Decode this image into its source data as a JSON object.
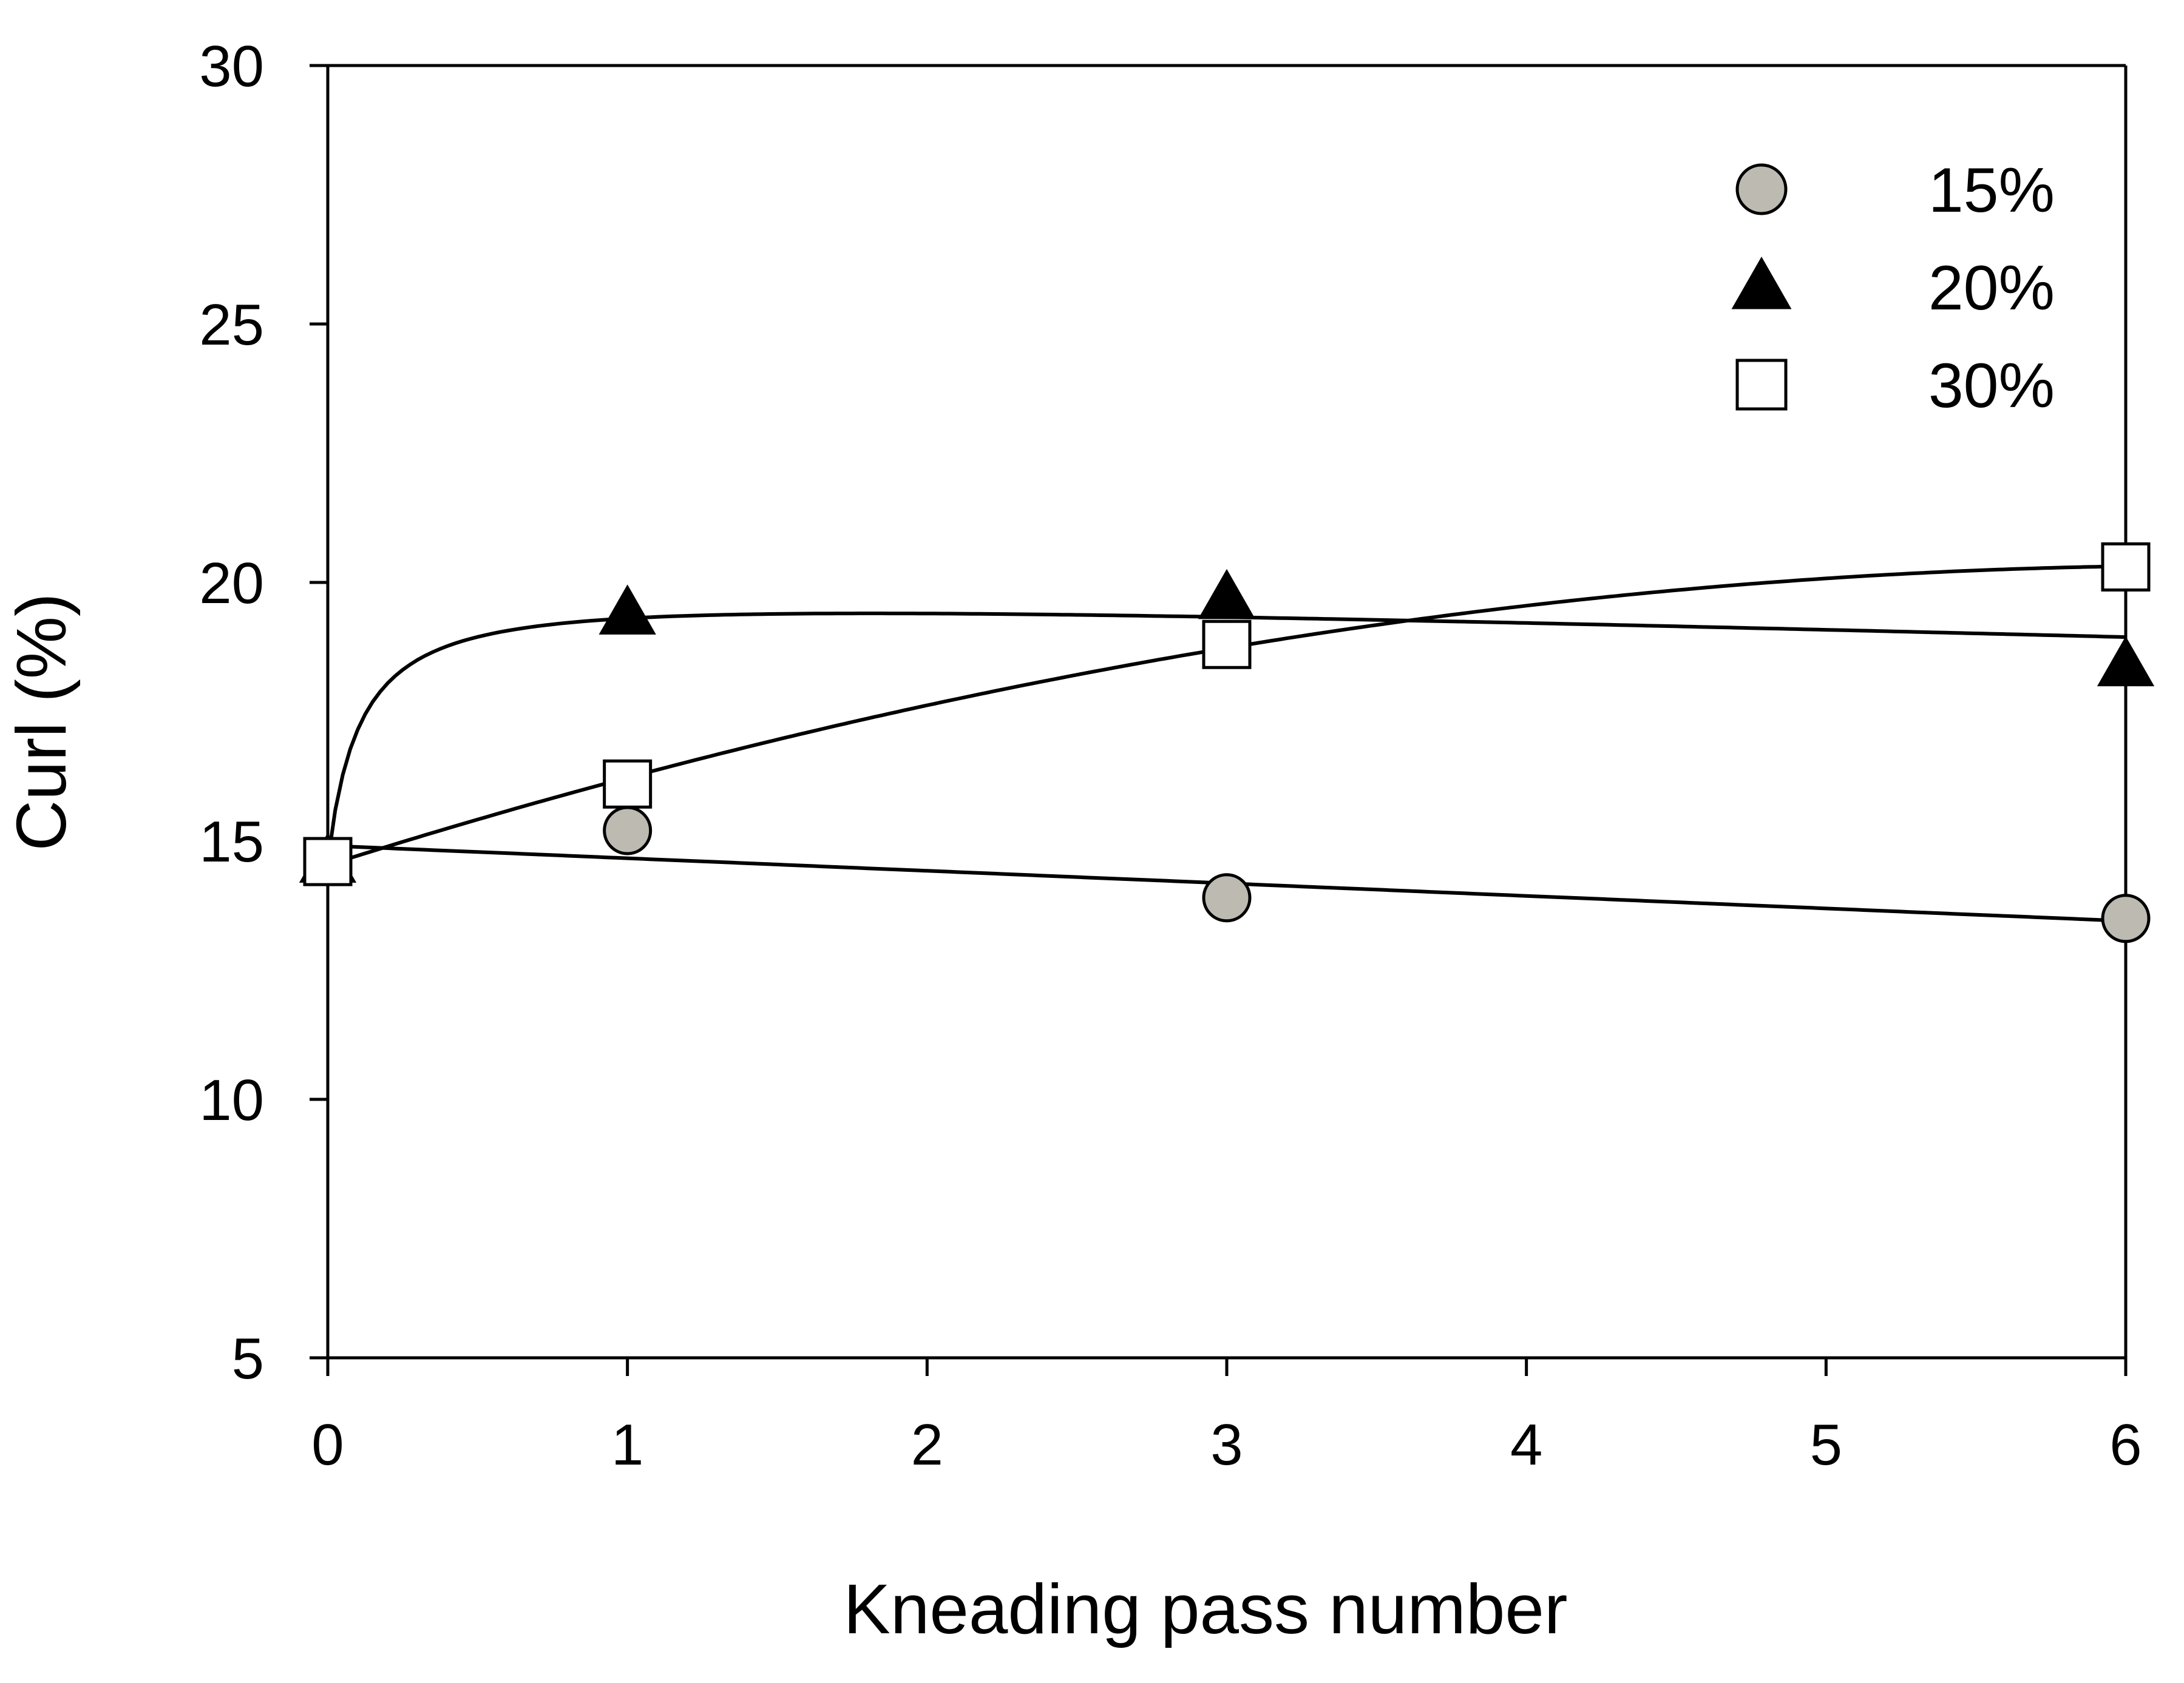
{
  "chart_data": {
    "type": "scatter",
    "title": "",
    "xlabel": "Kneading pass number",
    "ylabel": "Curl (%)",
    "xlim": [
      0,
      6
    ],
    "ylim": [
      5,
      30
    ],
    "xticks": [
      0,
      1,
      2,
      3,
      4,
      5,
      6
    ],
    "yticks": [
      5,
      10,
      15,
      20,
      25,
      30
    ],
    "legend_position": "top-right",
    "series": [
      {
        "name": "15%",
        "marker": "circle",
        "color": "#bdbab2",
        "x": [
          0,
          1,
          3,
          6
        ],
        "y": [
          14.6,
          15.2,
          13.9,
          13.5
        ],
        "trend": "linear"
      },
      {
        "name": "20%",
        "marker": "triangle",
        "color": "#000000",
        "x": [
          0,
          1,
          3,
          6
        ],
        "y": [
          14.6,
          19.4,
          19.7,
          18.4
        ],
        "trend": "saturating"
      },
      {
        "name": "30%",
        "marker": "square",
        "color": "#ffffff",
        "x": [
          0,
          1,
          3,
          6
        ],
        "y": [
          14.6,
          16.1,
          18.8,
          20.3
        ],
        "trend": "smooth"
      }
    ]
  }
}
